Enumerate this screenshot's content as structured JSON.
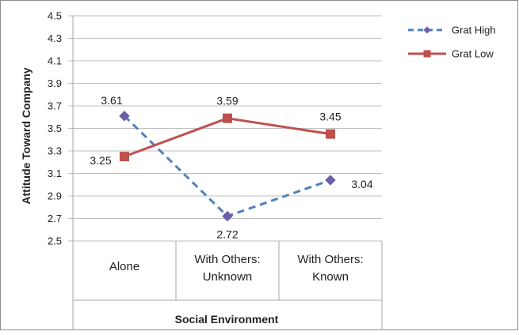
{
  "chart_data": {
    "type": "line",
    "title": "",
    "xlabel": "Social Environment",
    "ylabel": "Attitude Toward Company",
    "categories": [
      [
        "Alone"
      ],
      [
        "With Others:",
        "Unknown"
      ],
      [
        "With Others:",
        "Known"
      ]
    ],
    "ylim": [
      2.5,
      4.5
    ],
    "yticks": [
      "2.5",
      "2.7",
      "2.9",
      "3.1",
      "3.3",
      "3.5",
      "3.7",
      "3.9",
      "4.1",
      "4.3",
      "4.5"
    ],
    "grid": true,
    "legend_position": "right",
    "series": [
      {
        "name": "Grat High",
        "values": [
          3.61,
          2.72,
          3.04
        ],
        "labels": [
          "3.61",
          "2.72",
          "3.04"
        ],
        "color": "#4f81bd",
        "marker_color": "#6b5fa8",
        "line_style": "dashed",
        "marker": "diamond"
      },
      {
        "name": "Grat Low",
        "values": [
          3.25,
          3.59,
          3.45
        ],
        "labels": [
          "3.25",
          "3.59",
          "3.45"
        ],
        "color": "#c0504d",
        "marker_color": "#c0504d",
        "line_style": "solid",
        "marker": "square"
      }
    ]
  },
  "colors": {
    "grid": "#bfbfbf",
    "axis": "#a6a6a6",
    "frame": "#8c8c8c",
    "text": "#222222"
  }
}
